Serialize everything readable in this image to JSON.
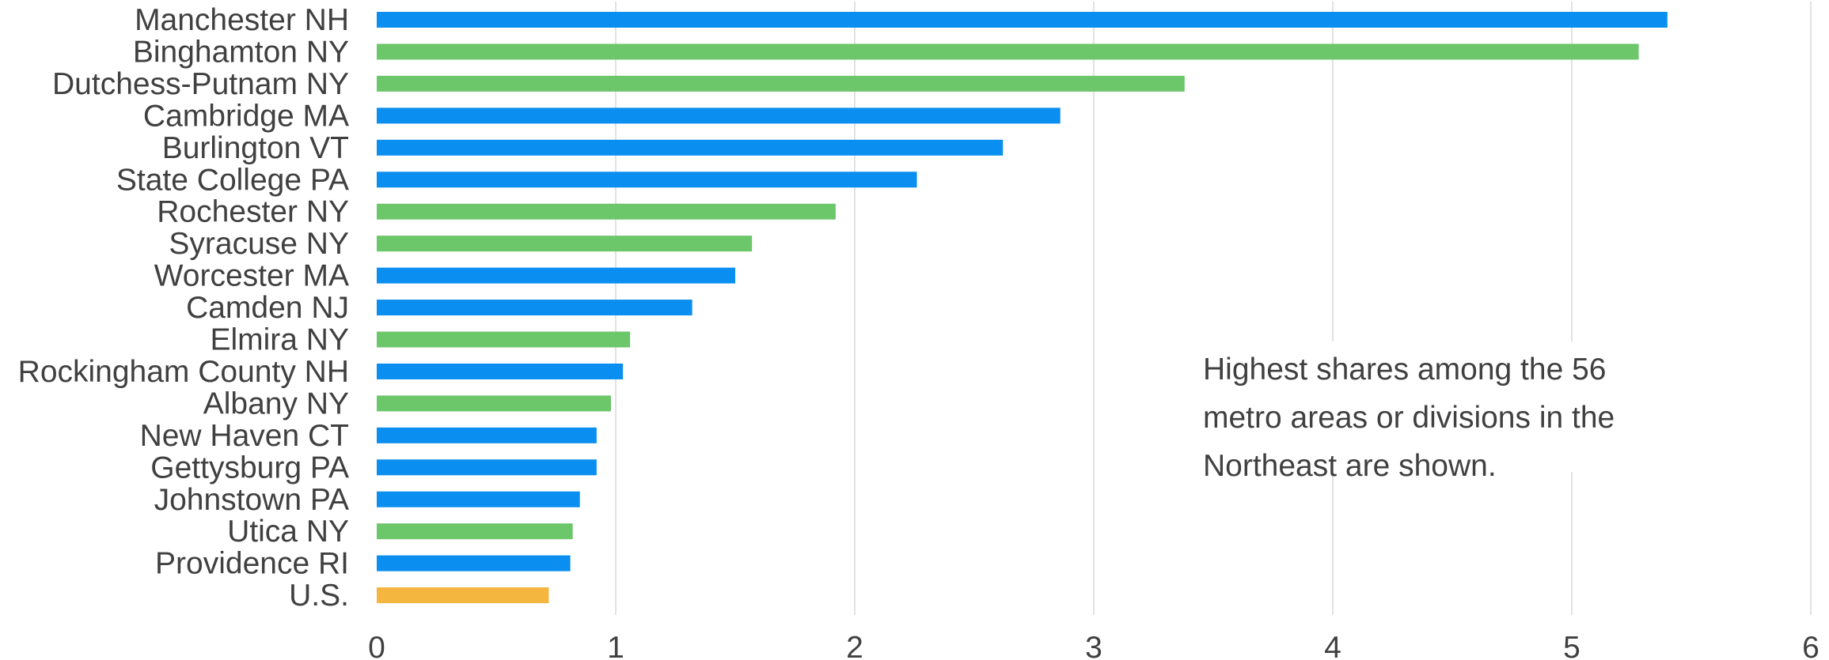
{
  "chart_data": {
    "type": "bar",
    "orientation": "horizontal",
    "title": "",
    "xlabel": "",
    "ylabel": "",
    "xlim": [
      0,
      6
    ],
    "x_ticks": [
      0,
      1,
      2,
      3,
      4,
      5,
      6
    ],
    "grid": "vertical",
    "legend": "none",
    "categories": [
      "Manchester NH",
      "Binghamton NY",
      "Dutchess-Putnam NY",
      "Cambridge MA",
      "Burlington VT",
      "State College PA",
      "Rochester NY",
      "Syracuse NY",
      "Worcester MA",
      "Camden NJ",
      "Elmira NY",
      "Rockingham County NH",
      "Albany NY",
      "New Haven CT",
      "Gettysburg PA",
      "Johnstown PA",
      "Utica NY",
      "Providence RI",
      "U.S."
    ],
    "values": [
      5.4,
      5.28,
      3.38,
      2.86,
      2.62,
      2.26,
      1.92,
      1.57,
      1.5,
      1.32,
      1.06,
      1.03,
      0.98,
      0.92,
      0.92,
      0.85,
      0.82,
      0.81,
      0.72
    ],
    "bar_groups": [
      "blue",
      "green",
      "green",
      "blue",
      "blue",
      "blue",
      "green",
      "green",
      "blue",
      "blue",
      "green",
      "blue",
      "green",
      "blue",
      "blue",
      "blue",
      "green",
      "blue",
      "orange"
    ],
    "colors": {
      "blue": "#0A8FF0",
      "green": "#6CC66A",
      "orange": "#F4B63F",
      "grid": "#D9D9D9",
      "text": "#404040"
    },
    "annotation": [
      "Highest shares among the 56",
      "metro areas or divisions in the",
      "Northeast are shown."
    ]
  }
}
